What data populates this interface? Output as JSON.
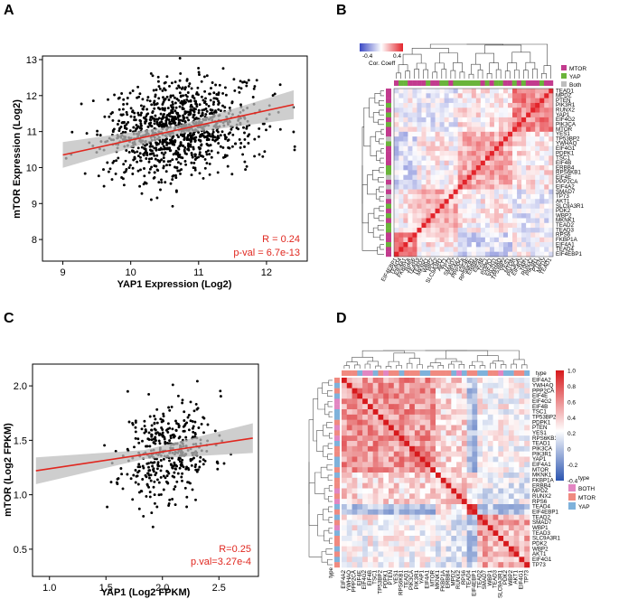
{
  "panels": {
    "A": "A",
    "B": "B",
    "C": "C",
    "D": "D"
  },
  "colors": {
    "reg_red": "#e0271f",
    "ci_gray": "#bdbdbd",
    "mtor": "#c23b8e",
    "yap": "#6ab43b",
    "both_b": "#bdbdbd",
    "d_both": "#e286c2",
    "d_mtor": "#f08a80",
    "d_yap": "#7fb2db"
  },
  "chart_data": [
    {
      "id": "A",
      "type": "scatter",
      "xlabel": "YAP1 Expression (Log2)",
      "ylabel": "mTOR Expression (Log2)",
      "xticks": [
        9,
        10,
        11,
        12
      ],
      "yticks": [
        8,
        9,
        10,
        11,
        12,
        13
      ],
      "xlim": [
        8.7,
        12.6
      ],
      "ylim": [
        7.4,
        13.1
      ],
      "n_points": 1100,
      "center": {
        "x": 10.7,
        "y": 11.05
      },
      "spread": {
        "x": 0.55,
        "y": 0.65
      },
      "regression": {
        "x": [
          9,
          12.4
        ],
        "y": [
          10.35,
          11.75
        ]
      },
      "stats": {
        "r": "R = 0.24",
        "p": "p-val = 6.7e-13"
      }
    },
    {
      "id": "C",
      "type": "scatter",
      "xlabel": "YAP1 (Log2 FPKM)",
      "ylabel": "mTOR (Log2 FPKM)",
      "xticks": [
        "1.0",
        "1.5",
        "2.0",
        "2.5"
      ],
      "xtick_values": [
        1.0,
        1.5,
        2.0,
        2.5
      ],
      "yticks": [
        "0.5",
        "1.0",
        "1.5",
        "2.0"
      ],
      "ytick_values": [
        0.5,
        1.0,
        1.5,
        2.0
      ],
      "xlim": [
        0.85,
        2.85
      ],
      "ylim": [
        0.25,
        2.2
      ],
      "n_points": 420,
      "center": {
        "x": 2.05,
        "y": 1.4
      },
      "spread": {
        "x": 0.2,
        "y": 0.22
      },
      "regression": {
        "x": [
          0.88,
          2.8
        ],
        "y": [
          1.22,
          1.52
        ]
      },
      "stats": {
        "r": "R=0.25",
        "p": "p.val=3.27e-4"
      }
    },
    {
      "id": "B",
      "type": "heatmap",
      "colorbar": {
        "title": "Cor. Coeff",
        "ticks": [
          "-0.4",
          "0.4"
        ]
      },
      "legend": [
        "MTOR",
        "YAP",
        "Both"
      ],
      "row_labels": [
        "TEAD1",
        "MPDZ",
        "PTEN",
        "PIK3R1",
        "RUNX2",
        "YAP1",
        "EIF4G2",
        "PIK3CA",
        "MTOR",
        "YES1",
        "TP53BP2",
        "YWHAQ",
        "EIF4G1",
        "PDPK1",
        "TSC1",
        "EIF4B",
        "ERBB4",
        "RPS6KB1",
        "EIF4E",
        "PPP2CA",
        "EIF4A2",
        "SMAD7",
        "TP73",
        "AKT1",
        "SLC9A3R1",
        "PDK2",
        "WBP2",
        "MKNK1",
        "TEAD2",
        "TEAD3",
        "RPS6",
        "FKBP1A",
        "EIF4A1",
        "TEAD4",
        "EIF4EBP1"
      ],
      "col_labels": [
        "EIF4EBP1",
        "TEAD4",
        "EIF4A1",
        "FKBP1A",
        "RPS6",
        "TEAD3",
        "TEAD2",
        "MKNK1",
        "WBP2",
        "PDK2",
        "SLC9A3R1",
        "AKT1",
        "TP73",
        "SMAD7",
        "EIF4A2",
        "PPP2CA",
        "EIF4E",
        "RPS6KB1",
        "ERBB4",
        "EIF4B",
        "TSC1",
        "PDPK1",
        "EIF4G1",
        "YWHAQ",
        "TP53BP2",
        "YES1",
        "MTOR",
        "PIK3CA",
        "EIF4G2",
        "YAP1",
        "RUNX2",
        "PIK3R1",
        "PTEN",
        "MPDZ",
        "TEAD1"
      ]
    },
    {
      "id": "D",
      "type": "heatmap",
      "colorbar": {
        "ticks": [
          "1.0",
          "0.8",
          "0.6",
          "0.4",
          "0.2",
          "0",
          "-0.2",
          "-0.4"
        ]
      },
      "annotation_header": "type",
      "legend_title": "type",
      "legend": [
        "BOTH",
        "MTOR",
        "YAP"
      ],
      "row_labels": [
        "EIF4A2",
        "YWHAQ",
        "PPP2CA",
        "EIF4E",
        "EIF4G2",
        "EIF4B",
        "TSC1",
        "TP53BP2",
        "PDPK1",
        "PTEN",
        "YES1",
        "RPS6KB1",
        "TEAD1",
        "PIK3CA",
        "PIK3R1",
        "YAP1",
        "EIF4A1",
        "MTOR",
        "MKNK1",
        "FKBP1A",
        "ERBB4",
        "MPDZ",
        "RUNX2",
        "RPS6",
        "TEAD4",
        "EIF4EBP1",
        "TEAD2",
        "SMAD7",
        "WBP1",
        "TEAD3",
        "SLC9A3R1",
        "PDK2",
        "WBP2",
        "AKT1",
        "EIF4G1",
        "TP73"
      ],
      "col_labels": [
        "EIF4A2",
        "YWHAQ",
        "PPP2CA",
        "EIF4E",
        "EIF4G2",
        "EIF4B",
        "TSC1",
        "TP53BP2",
        "PDPK1",
        "PTEN",
        "YES1",
        "RPS6KB1",
        "TEAD1",
        "PIK3CA",
        "PIK3R1",
        "YAP1",
        "EIF4A1",
        "MTOR",
        "MKNK1",
        "FKBP1A",
        "ERBB4",
        "MPDZ",
        "RUNX2",
        "RPS6",
        "TEAD4",
        "EIF4EBP1",
        "TEAD2",
        "SMAD7",
        "WBP1",
        "TEAD3",
        "SLC9A3R1",
        "PDK2",
        "WBP2",
        "AKT1",
        "EIF4G1",
        "TP73"
      ]
    }
  ]
}
